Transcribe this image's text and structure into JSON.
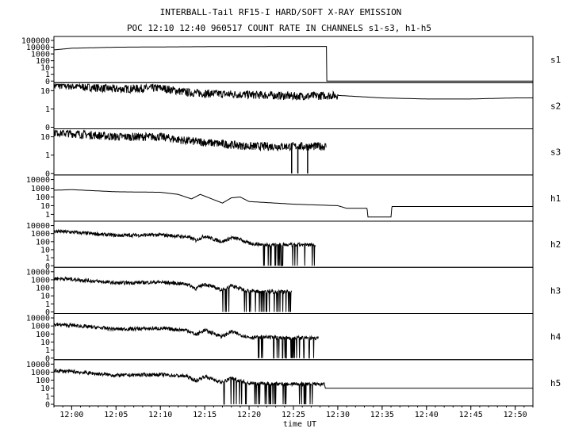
{
  "title_line1": "INTERBALL-Tail RF15-I HARD/SOFT X-RAY EMISSION",
  "title_line2": "POC 12:10 12:40 960517  COUNT RATE IN CHANNELS s1-s3, h1-h5",
  "chart_data": {
    "type": "line",
    "xlabel": "time UT",
    "x_range": [
      "11:58",
      "12:52"
    ],
    "x_ticks": [
      "12:00",
      "12:05",
      "12:10",
      "12:15",
      "12:20",
      "12:25",
      "12:30",
      "12:35",
      "12:40",
      "12:45",
      "12:50"
    ],
    "grid": false,
    "panels": [
      {
        "name": "s1",
        "yscale": "log",
        "yticks": [
          "100000",
          "10000",
          "1000",
          "100",
          "10",
          "1",
          "0"
        ]
      },
      {
        "name": "s2",
        "yscale": "log",
        "yticks": [
          "10",
          "1",
          "0"
        ]
      },
      {
        "name": "s3",
        "yscale": "log",
        "yticks": [
          "10",
          "1",
          "0"
        ]
      },
      {
        "name": "h1",
        "yscale": "log",
        "yticks": [
          "10000",
          "1000",
          "100",
          "10",
          "1"
        ]
      },
      {
        "name": "h2",
        "yscale": "log",
        "yticks": [
          "10000",
          "1000",
          "100",
          "10",
          "1",
          "0"
        ]
      },
      {
        "name": "h3",
        "yscale": "log",
        "yticks": [
          "10000",
          "1000",
          "100",
          "10",
          "1",
          "0"
        ]
      },
      {
        "name": "h4",
        "yscale": "log",
        "yticks": [
          "10000",
          "1000",
          "100",
          "10",
          "1",
          "0"
        ]
      },
      {
        "name": "h5",
        "yscale": "log",
        "yticks": [
          "10000",
          "1000",
          "100",
          "10",
          "1",
          "0"
        ]
      }
    ],
    "series": [
      {
        "name": "s1",
        "points": [
          [
            "11:58",
            4000
          ],
          [
            "12:00",
            7000
          ],
          [
            "12:05",
            10000
          ],
          [
            "12:15",
            12000
          ],
          [
            "12:25",
            13000
          ],
          [
            "12:28.7",
            13000
          ],
          [
            "12:28.8",
            0
          ],
          [
            "12:52",
            0
          ]
        ]
      },
      {
        "name": "s2",
        "points": [
          [
            "11:58",
            20
          ],
          [
            "12:00",
            18
          ],
          [
            "12:05",
            12
          ],
          [
            "12:10",
            14
          ],
          [
            "12:13",
            8
          ],
          [
            "12:15",
            7
          ],
          [
            "12:20",
            6
          ],
          [
            "12:25",
            5
          ],
          [
            "12:30",
            5.5
          ],
          [
            "12:35",
            4
          ],
          [
            "12:40",
            3.5
          ],
          [
            "12:45",
            3.5
          ],
          [
            "12:50",
            4
          ],
          [
            "12:52",
            4
          ]
        ],
        "noisy_until": "12:30"
      },
      {
        "name": "s3",
        "points": [
          [
            "11:58",
            18
          ],
          [
            "12:00",
            15
          ],
          [
            "12:05",
            10
          ],
          [
            "12:10",
            10
          ],
          [
            "12:13",
            6
          ],
          [
            "12:15",
            5
          ],
          [
            "12:20",
            3
          ],
          [
            "12:25",
            3
          ],
          [
            "12:28.7",
            3
          ]
        ],
        "noisy_until": "12:29",
        "dropouts": [
          "12:24.8",
          "12:25.5",
          "12:26.6"
        ]
      },
      {
        "name": "h1",
        "points": [
          [
            "11:58",
            600
          ],
          [
            "12:00",
            700
          ],
          [
            "12:05",
            400
          ],
          [
            "12:10",
            350
          ],
          [
            "12:12",
            200
          ],
          [
            "12:13.5",
            60
          ],
          [
            "12:14.5",
            200
          ],
          [
            "12:16",
            50
          ],
          [
            "12:17",
            20
          ],
          [
            "12:18",
            80
          ],
          [
            "12:19",
            100
          ],
          [
            "12:20",
            30
          ],
          [
            "12:25",
            15
          ],
          [
            "12:30",
            10
          ],
          [
            "12:31",
            5
          ],
          [
            "12:33.3",
            5
          ],
          [
            "12:33.4",
            0.5
          ],
          [
            "12:36",
            0.5
          ],
          [
            "12:36.1",
            8
          ],
          [
            "12:52",
            8
          ]
        ]
      },
      {
        "name": "h2",
        "points": [
          [
            "11:58",
            2000
          ],
          [
            "12:00",
            1500
          ],
          [
            "12:05",
            600
          ],
          [
            "12:10",
            700
          ],
          [
            "12:13",
            400
          ],
          [
            "12:14",
            150
          ],
          [
            "12:15",
            500
          ],
          [
            "12:16",
            200
          ],
          [
            "12:17",
            100
          ],
          [
            "12:18",
            300
          ],
          [
            "12:19",
            200
          ],
          [
            "12:20",
            60
          ],
          [
            "12:22",
            40
          ],
          [
            "12:27.5",
            40
          ]
        ],
        "noisy_until": "12:27.5",
        "dropouts_from": "12:21.5"
      },
      {
        "name": "h3",
        "points": [
          [
            "11:58",
            1500
          ],
          [
            "12:00",
            1200
          ],
          [
            "12:05",
            400
          ],
          [
            "12:10",
            500
          ],
          [
            "12:13",
            300
          ],
          [
            "12:14",
            80
          ],
          [
            "12:15",
            300
          ],
          [
            "12:16",
            120
          ],
          [
            "12:17",
            50
          ],
          [
            "12:18",
            200
          ],
          [
            "12:19",
            80
          ],
          [
            "12:20",
            40
          ],
          [
            "12:24.8",
            30
          ]
        ],
        "noisy_until": "12:24.8",
        "dropouts_from": "12:17"
      },
      {
        "name": "h4",
        "points": [
          [
            "11:58",
            1500
          ],
          [
            "12:00",
            1200
          ],
          [
            "12:05",
            400
          ],
          [
            "12:10",
            500
          ],
          [
            "12:13",
            300
          ],
          [
            "12:14",
            80
          ],
          [
            "12:15",
            300
          ],
          [
            "12:16",
            120
          ],
          [
            "12:17",
            50
          ],
          [
            "12:18",
            200
          ],
          [
            "12:19",
            80
          ],
          [
            "12:20",
            40
          ],
          [
            "12:27.8",
            30
          ]
        ],
        "noisy_until": "12:27.8",
        "dropouts_from": "12:21"
      },
      {
        "name": "h5",
        "points": [
          [
            "11:58",
            1500
          ],
          [
            "12:00",
            1200
          ],
          [
            "12:05",
            400
          ],
          [
            "12:10",
            500
          ],
          [
            "12:13",
            300
          ],
          [
            "12:14",
            80
          ],
          [
            "12:15",
            300
          ],
          [
            "12:16",
            120
          ],
          [
            "12:17",
            50
          ],
          [
            "12:18",
            200
          ],
          [
            "12:19",
            80
          ],
          [
            "12:20",
            40
          ],
          [
            "12:28.5",
            30
          ],
          [
            "12:28.6",
            10
          ],
          [
            "12:52",
            10
          ]
        ],
        "noisy_until": "12:28.5",
        "dropouts_from": "12:17"
      }
    ]
  }
}
